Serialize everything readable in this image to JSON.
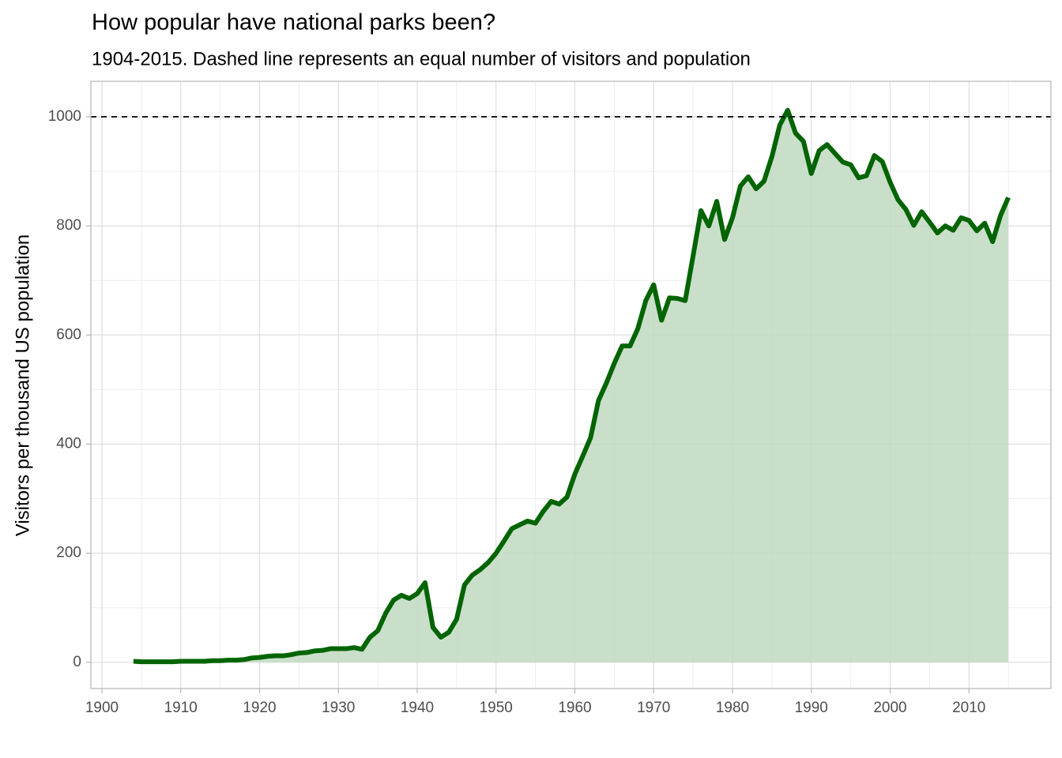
{
  "chart_data": {
    "type": "area",
    "title": "How popular have national parks been?",
    "subtitle": "1904-2015. Dashed line represents an equal number of visitors and population",
    "y_label": "Visitors per thousand US population",
    "x": [
      1904,
      1905,
      1906,
      1907,
      1908,
      1909,
      1910,
      1911,
      1912,
      1913,
      1914,
      1915,
      1916,
      1917,
      1918,
      1919,
      1920,
      1921,
      1922,
      1923,
      1924,
      1925,
      1926,
      1927,
      1928,
      1929,
      1930,
      1931,
      1932,
      1933,
      1934,
      1935,
      1936,
      1937,
      1938,
      1939,
      1940,
      1941,
      1942,
      1943,
      1944,
      1945,
      1946,
      1947,
      1948,
      1949,
      1950,
      1951,
      1952,
      1953,
      1954,
      1955,
      1956,
      1957,
      1958,
      1959,
      1960,
      1961,
      1962,
      1963,
      1964,
      1965,
      1966,
      1967,
      1968,
      1969,
      1970,
      1971,
      1972,
      1973,
      1974,
      1975,
      1976,
      1977,
      1978,
      1979,
      1980,
      1981,
      1982,
      1983,
      1984,
      1985,
      1986,
      1987,
      1988,
      1989,
      1990,
      1991,
      1992,
      1993,
      1994,
      1995,
      1996,
      1997,
      1998,
      1999,
      2000,
      2001,
      2002,
      2003,
      2004,
      2005,
      2006,
      2007,
      2008,
      2009,
      2010,
      2011,
      2012,
      2013,
      2014,
      2015
    ],
    "values": [
      2,
      1,
      1,
      1,
      1,
      1,
      2,
      2,
      2,
      2,
      3,
      3,
      4,
      4,
      5,
      8,
      9,
      11,
      12,
      12,
      14,
      17,
      18,
      21,
      22,
      25,
      25,
      25,
      27,
      24,
      46,
      58,
      90,
      114,
      123,
      117,
      126,
      146,
      64,
      46,
      55,
      79,
      142,
      160,
      170,
      183,
      200,
      222,
      245,
      252,
      259,
      255,
      277,
      295,
      290,
      303,
      345,
      378,
      412,
      480,
      512,
      548,
      580,
      580,
      612,
      663,
      692,
      627,
      668,
      667,
      663,
      745,
      828,
      800,
      845,
      775,
      815,
      873,
      890,
      868,
      882,
      927,
      985,
      1012,
      970,
      955,
      896,
      938,
      949,
      933,
      917,
      912,
      888,
      892,
      929,
      918,
      880,
      848,
      830,
      801,
      826,
      807,
      787,
      800,
      792,
      815,
      810,
      791,
      805,
      771,
      819,
      852
    ],
    "color": "#006400",
    "fill_color": "#c1d9c1",
    "reference_line": 1000,
    "xlim": [
      1898.6,
      2020.4
    ],
    "ylim": [
      -48,
      1065
    ],
    "xticks": [
      1900,
      1910,
      1920,
      1930,
      1940,
      1950,
      1960,
      1970,
      1980,
      1990,
      2000,
      2010
    ],
    "yticks": [
      0,
      200,
      400,
      600,
      800,
      1000
    ],
    "x_minor_ticks": [
      1905,
      1915,
      1925,
      1935,
      1945,
      1955,
      1965,
      1975,
      1985,
      1995,
      2005,
      2015
    ],
    "y_minor_ticks": [
      100,
      300,
      500,
      700,
      900
    ],
    "grid": true
  }
}
